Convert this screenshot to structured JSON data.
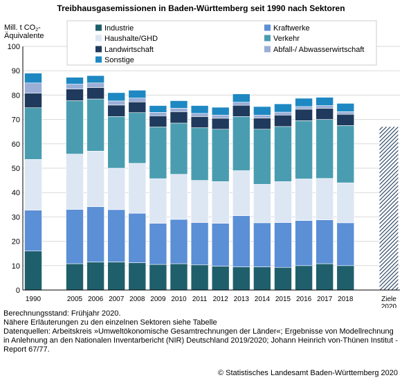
{
  "chart_data": {
    "type": "stacked-bar",
    "title": "Treibhausgasemissionen in Baden-Württemberg seit 1990 nach Sektoren",
    "ylabel_line1": "Mill. t CO",
    "ylabel_sub": "2",
    "ylabel_suffix": "-",
    "ylabel_line2": "Äquivalente",
    "ylim": [
      0,
      100
    ],
    "yticks": [
      0,
      10,
      20,
      30,
      40,
      50,
      60,
      70,
      80,
      90,
      100
    ],
    "grid": true,
    "legend_position": "top",
    "categories": [
      "1990",
      "2005",
      "2006",
      "2007",
      "2008",
      "2009",
      "2010",
      "2011",
      "2012",
      "2013",
      "2014",
      "2015",
      "2016",
      "2017",
      "2018"
    ],
    "series": [
      {
        "name": "Industrie",
        "color": "#1f5f6b",
        "values": [
          16.0,
          10.8,
          11.5,
          11.5,
          11.2,
          10.5,
          10.8,
          10.3,
          9.8,
          9.5,
          9.5,
          9.3,
          10.0,
          10.8,
          10.0
        ]
      },
      {
        "name": "Kraftwerke",
        "color": "#5b8fd6",
        "values": [
          16.8,
          22.3,
          22.7,
          21.5,
          20.3,
          16.9,
          18.2,
          17.4,
          17.6,
          21.0,
          18.1,
          18.4,
          18.5,
          18.0,
          17.6
        ]
      },
      {
        "name": "Haushalte/GHD",
        "color": "#dde6f3",
        "values": [
          20.8,
          22.7,
          22.8,
          17.0,
          20.5,
          18.3,
          18.5,
          17.3,
          17.1,
          18.5,
          15.8,
          16.8,
          17.1,
          17.0,
          16.4
        ]
      },
      {
        "name": "Verkehr",
        "color": "#4a9db0",
        "values": [
          21.2,
          21.9,
          21.4,
          21.2,
          20.8,
          21.2,
          21.0,
          21.6,
          21.5,
          22.2,
          22.6,
          22.6,
          23.9,
          24.2,
          23.5
        ]
      },
      {
        "name": "Landwirtschaft",
        "color": "#1f3a5c",
        "values": [
          6.0,
          4.8,
          4.7,
          4.7,
          4.4,
          4.6,
          4.7,
          4.6,
          4.5,
          4.6,
          4.6,
          4.7,
          4.7,
          4.6,
          4.6
        ]
      },
      {
        "name": "Abfall-/ Abwasserwirtschaft",
        "color": "#9aaed6",
        "values": [
          4.2,
          2.0,
          1.9,
          1.7,
          1.6,
          1.4,
          1.4,
          1.3,
          1.3,
          1.3,
          1.2,
          1.2,
          1.1,
          1.1,
          1.1
        ]
      },
      {
        "name": "Sonstige",
        "color": "#1e88c2",
        "values": [
          4.0,
          2.8,
          3.0,
          3.4,
          3.2,
          2.8,
          3.1,
          3.2,
          3.2,
          3.4,
          3.5,
          3.4,
          3.4,
          3.4,
          3.4
        ]
      }
    ],
    "target": {
      "label_line1": "Ziele",
      "label_line2": "2020",
      "value": 67,
      "pattern": "diagonal-hatch"
    }
  },
  "notes": {
    "line1": "Berechnungsstand: Frühjahr 2020.",
    "line2": "Nähere Erläuterungen zu den einzelnen Sektoren siehe Tabelle",
    "line3": "Datenquellen: Arbeitskreis »Umweltökonomische Gesamtrechnungen der Länder«; Ergebnisse von Modellrechnung in Anlehnung an den Nationalen Inventarbericht (NIR) Deutschland 2019/2020; Johann Heinrich von-Thünen Institut - Report 67/77."
  },
  "copyright": "© Statistisches Landesamt Baden-Württemberg 2020"
}
